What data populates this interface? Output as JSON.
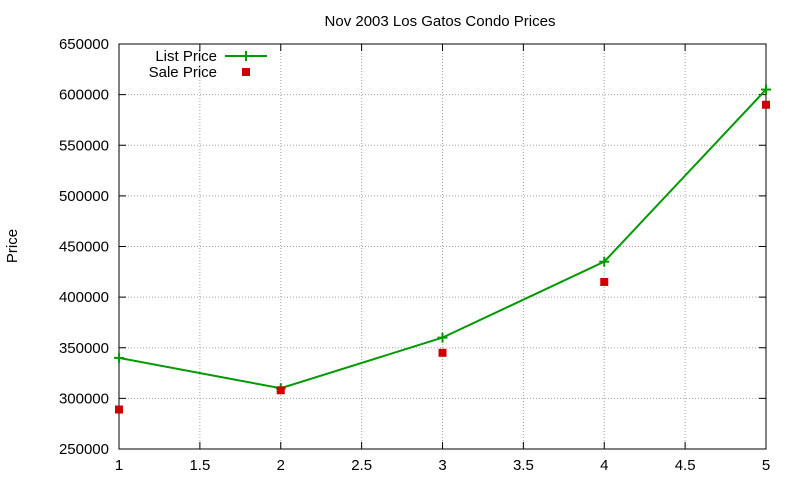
{
  "chart_data": {
    "type": "line",
    "title": "Nov 2003 Los Gatos Condo Prices",
    "xlabel": "",
    "ylabel": "Price",
    "xlim": [
      1,
      5
    ],
    "ylim": [
      250000,
      650000
    ],
    "x_ticks": [
      "1",
      "1.5",
      "2",
      "2.5",
      "3",
      "3.5",
      "4",
      "4.5",
      "5"
    ],
    "y_ticks": [
      "250000",
      "300000",
      "350000",
      "400000",
      "450000",
      "500000",
      "550000",
      "600000",
      "650000"
    ],
    "grid": true,
    "legend_position": "top-left",
    "series": [
      {
        "name": "List Price",
        "style": "line-with-plus-markers",
        "color": "#009900",
        "x": [
          1,
          2,
          3,
          4,
          5
        ],
        "y": [
          340000,
          310000,
          360000,
          435000,
          605000
        ]
      },
      {
        "name": "Sale Price",
        "style": "square-markers",
        "color": "#cc0000",
        "x": [
          1,
          2,
          3,
          4,
          5
        ],
        "y": [
          289000,
          308000,
          345000,
          415000,
          590000
        ]
      }
    ]
  }
}
